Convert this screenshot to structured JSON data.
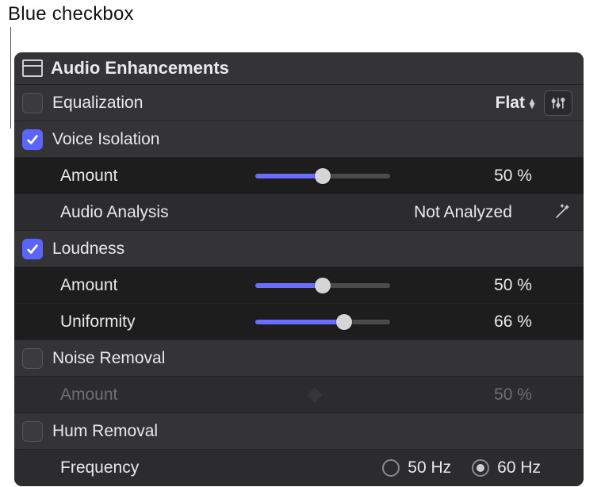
{
  "callout": {
    "text": "Blue checkbox"
  },
  "header": {
    "title": "Audio Enhancements"
  },
  "equalization": {
    "label": "Equalization",
    "checked": false,
    "preset": "Flat"
  },
  "voice_isolation": {
    "label": "Voice Isolation",
    "checked": true,
    "amount": {
      "label": "Amount",
      "value": 50,
      "display": "50 %"
    },
    "analysis": {
      "label": "Audio Analysis",
      "status": "Not Analyzed"
    }
  },
  "loudness": {
    "label": "Loudness",
    "checked": true,
    "amount": {
      "label": "Amount",
      "value": 50,
      "display": "50 %"
    },
    "uniformity": {
      "label": "Uniformity",
      "value": 66,
      "display": "66 %"
    }
  },
  "noise_removal": {
    "label": "Noise Removal",
    "checked": false,
    "amount": {
      "label": "Amount",
      "value": 50,
      "display": "50 %"
    }
  },
  "hum_removal": {
    "label": "Hum Removal",
    "checked": false,
    "frequency": {
      "label": "Frequency",
      "options": [
        "50 Hz",
        "60 Hz"
      ],
      "selected": "60 Hz"
    }
  },
  "style": {
    "accent": "#5a64ff",
    "slider_fill": "#6a6dff",
    "panel_bg": "#2f2f31",
    "param_bg": "#1d1d1e",
    "section_bg": "#343436"
  }
}
